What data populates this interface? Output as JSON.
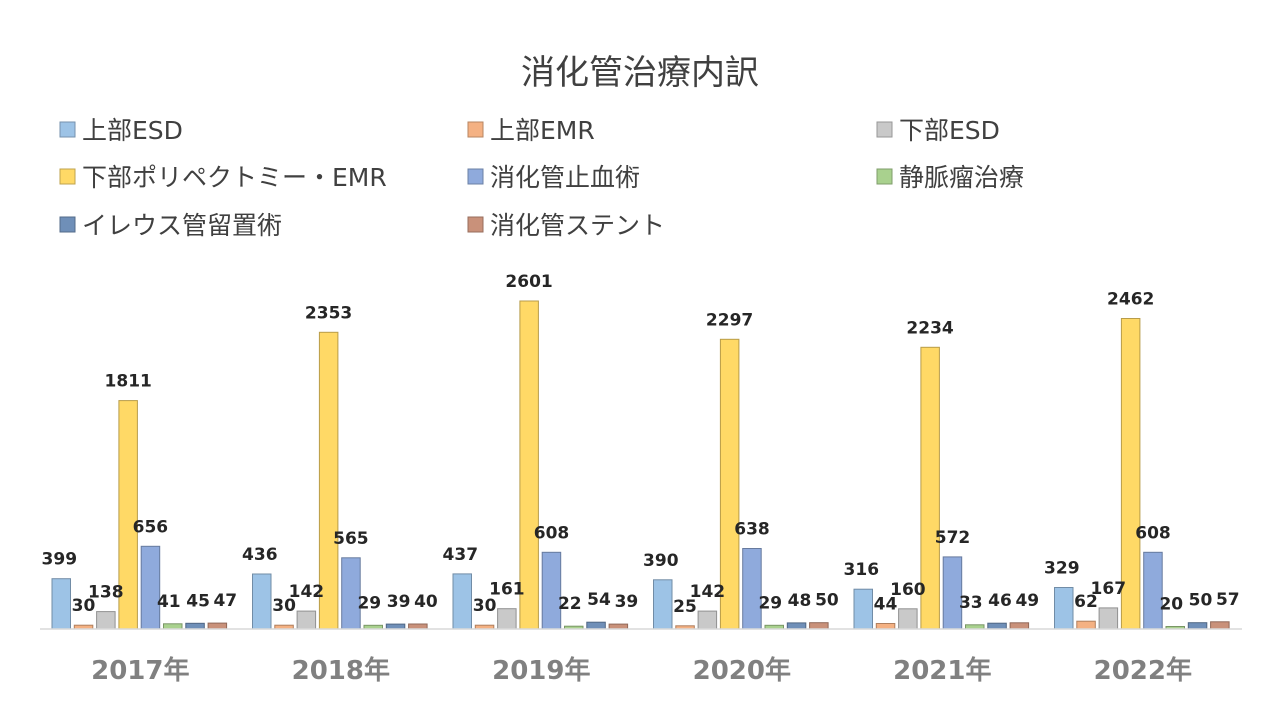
{
  "chart_data": {
    "type": "bar",
    "title": "消化管治療内訳",
    "xlabel": "",
    "ylabel": "",
    "ylim": [
      0,
      2601
    ],
    "grid": false,
    "legend_position": "top",
    "categories": [
      "2017年",
      "2018年",
      "2019年",
      "2020年",
      "2021年",
      "2022年"
    ],
    "series": [
      {
        "name": "上部ESD",
        "color": "#9dc3e6",
        "values": [
          399,
          436,
          437,
          390,
          316,
          329
        ]
      },
      {
        "name": "上部EMR",
        "color": "#f4b183",
        "values": [
          30,
          30,
          30,
          25,
          44,
          62
        ]
      },
      {
        "name": "下部ESD",
        "color": "#c9c9c9",
        "values": [
          138,
          142,
          161,
          142,
          160,
          167
        ]
      },
      {
        "name": "下部ポリペクトミー・EMR",
        "color": "#ffd966",
        "values": [
          1811,
          2353,
          2601,
          2297,
          2234,
          2462
        ]
      },
      {
        "name": "消化管止血術",
        "color": "#8faadc",
        "values": [
          656,
          565,
          608,
          638,
          572,
          608
        ]
      },
      {
        "name": "静脈瘤治療",
        "color": "#a9d18e",
        "values": [
          41,
          29,
          22,
          29,
          33,
          20
        ]
      },
      {
        "name": "イレウス管留置術",
        "color": "#6f8fb8",
        "values": [
          45,
          39,
          54,
          48,
          46,
          50
        ]
      },
      {
        "name": "消化管ステント",
        "color": "#c9917a",
        "values": [
          47,
          40,
          39,
          50,
          49,
          57
        ]
      }
    ]
  }
}
